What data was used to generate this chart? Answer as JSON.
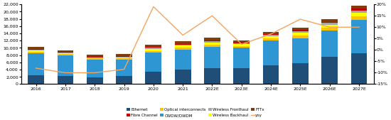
{
  "categories": [
    "2016",
    "2017",
    "2018",
    "2019",
    "2020",
    "2021",
    "2022E",
    "2023E",
    "2024E",
    "2025E",
    "2026E",
    "2027E"
  ],
  "ethernet": [
    2500,
    2200,
    1800,
    2200,
    3500,
    4000,
    4500,
    4500,
    5200,
    5800,
    7500,
    8500
  ],
  "cwdw_dwdm": [
    6000,
    5800,
    5000,
    4600,
    5200,
    5500,
    5800,
    5500,
    6800,
    6800,
    7200,
    9200
  ],
  "optical_interconnects": [
    400,
    300,
    250,
    350,
    500,
    500,
    600,
    500,
    600,
    800,
    900,
    1000
  ],
  "wireless_backhaul": [
    350,
    280,
    200,
    280,
    550,
    600,
    650,
    550,
    650,
    750,
    850,
    950
  ],
  "wireless_fronthaul": [
    280,
    200,
    180,
    200,
    280,
    280,
    280,
    280,
    380,
    480,
    480,
    580
  ],
  "fibre_channel": [
    250,
    180,
    130,
    180,
    250,
    250,
    270,
    180,
    250,
    280,
    280,
    550
  ],
  "fttx": [
    500,
    430,
    520,
    600,
    620,
    650,
    650,
    450,
    550,
    650,
    650,
    800
  ],
  "yoy": [
    -0.08,
    -0.1,
    -0.1,
    -0.085,
    0.19,
    0.065,
    0.15,
    0.025,
    0.07,
    0.135,
    0.1,
    0.1
  ],
  "colors": {
    "ethernet": "#1f4e79",
    "cwdw_dwdm": "#2e96d3",
    "optical_interconnects": "#ffc000",
    "wireless_backhaul": "#ffff00",
    "wireless_fronthaul": "#a6a6a6",
    "fibre_channel": "#c00000",
    "fttx": "#843c0c",
    "yoy": "#f4a460"
  },
  "ylim_left": [
    0,
    22000
  ],
  "ylim_right": [
    -0.15,
    0.2
  ],
  "yticks_left": [
    0,
    2000,
    4000,
    6000,
    8000,
    10000,
    12000,
    14000,
    16000,
    18000,
    20000,
    22000
  ],
  "yticks_right": [
    -0.15,
    -0.1,
    -0.05,
    0.0,
    0.05,
    0.1,
    0.15,
    0.2
  ],
  "background_color": "#ffffff"
}
